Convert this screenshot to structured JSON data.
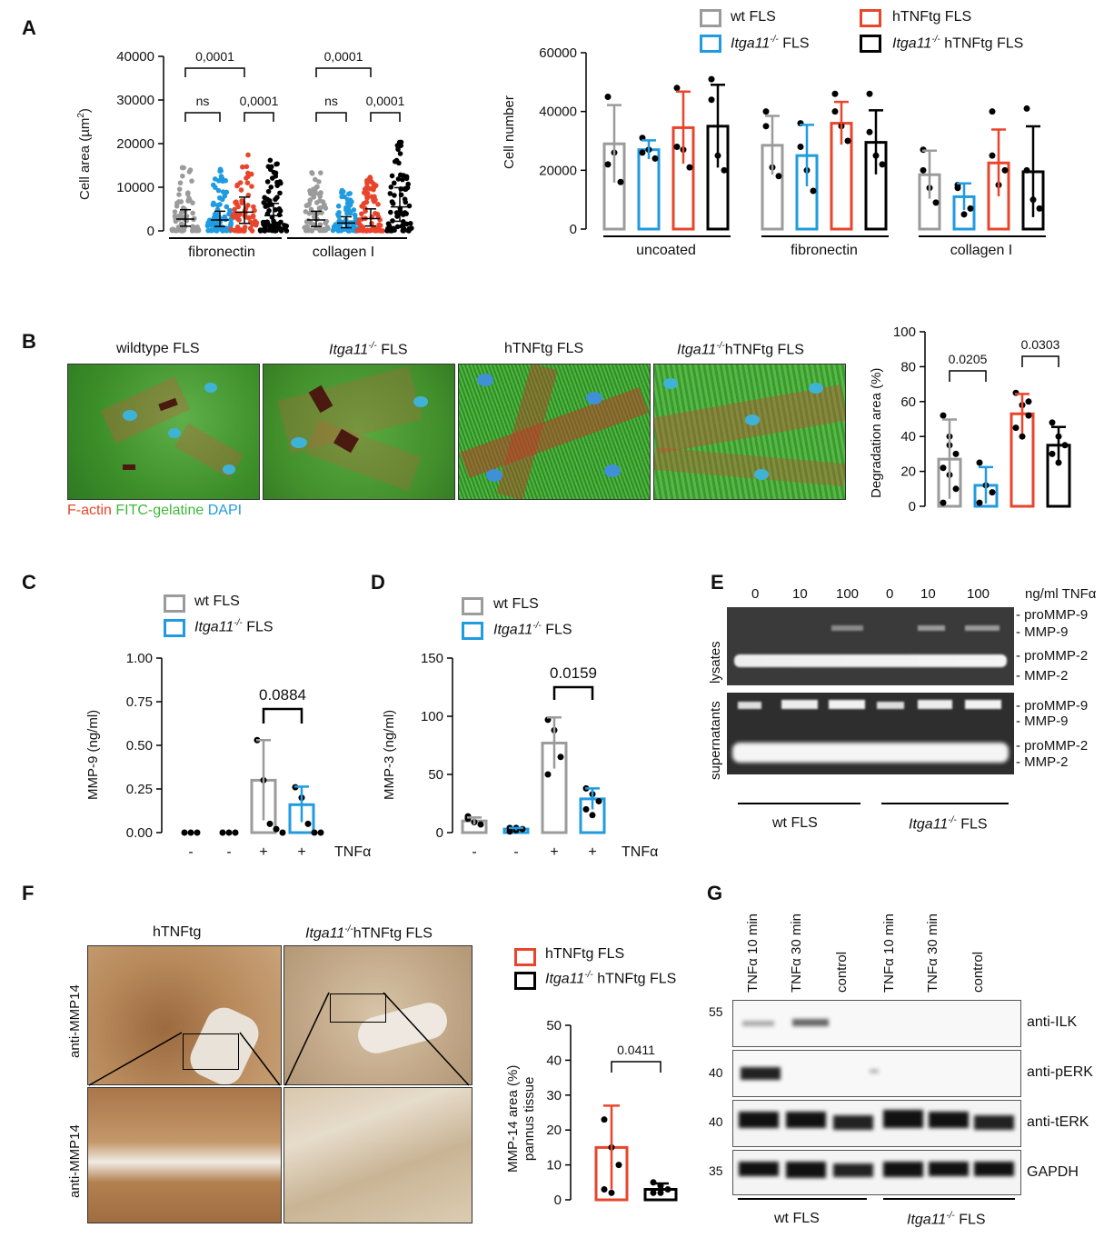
{
  "panels": {
    "A": {
      "letter": "A"
    },
    "B": {
      "letter": "B"
    },
    "C": {
      "letter": "C"
    },
    "D": {
      "letter": "D"
    },
    "E": {
      "letter": "E"
    },
    "F": {
      "letter": "F"
    },
    "G": {
      "letter": "G"
    }
  },
  "legend_main": {
    "wt": "wt FLS",
    "ko": "Itga11",
    "ko_sup": "-/-",
    "ko_suffix": " FLS",
    "tg": "hTNFtg FLS",
    "kotg": "Itga11",
    "kotg_sup": "-/-",
    "kotg_suffix": " hTNFtg FLS"
  },
  "colors": {
    "wt": "#9b9b9b",
    "ko": "#1f9be0",
    "tg": "#e8452c",
    "kotg": "#000000"
  },
  "chart_data": [
    {
      "id": "A-left",
      "type": "scatter",
      "ylabel": "Cell area (µm²)",
      "ylabel_main": "Cell area (µm",
      "ylabel_sup": "2",
      "ylabel_end": ")",
      "yticks": [
        "0",
        "10000",
        "20000",
        "30000",
        "40000"
      ],
      "ylim": [
        0,
        40000
      ],
      "groups": [
        "fibronectin",
        "collagen I"
      ],
      "annotations": [
        "0,0001",
        "ns",
        "0,0001",
        "0,0001",
        "ns",
        "0,0001"
      ],
      "series_medians": [
        2700,
        2500,
        4300,
        3500,
        2500,
        1800,
        2800,
        5500
      ]
    },
    {
      "id": "A-right",
      "type": "bar",
      "ylabel": "Cell number",
      "yticks": [
        "0",
        "20000",
        "40000",
        "60000"
      ],
      "ylim": [
        0,
        60000
      ],
      "categories": [
        "uncoated",
        "fibronectin",
        "collagen I"
      ],
      "series": [
        {
          "values": [
            29000,
            28500,
            18500
          ]
        },
        {
          "values": [
            27000,
            25000,
            11000
          ]
        },
        {
          "values": [
            34500,
            36000,
            22500
          ]
        },
        {
          "values": [
            35000,
            29500,
            19500
          ]
        }
      ]
    },
    {
      "id": "B-right",
      "type": "bar",
      "ylabel": "Degradation area (%)",
      "yticks": [
        "0",
        "20",
        "40",
        "60",
        "80",
        "100"
      ],
      "ylim": [
        0,
        100
      ],
      "values": [
        27,
        12,
        53,
        35
      ],
      "annotations": [
        "0.0205",
        "0.0303"
      ]
    },
    {
      "id": "C",
      "type": "bar",
      "ylabel": "MMP-9 (ng/ml)",
      "yticks": [
        "0.00",
        "0.25",
        "0.50",
        "0.75",
        "1.00"
      ],
      "ylim": [
        0,
        1
      ],
      "x_labels": [
        "-",
        "-",
        "+",
        "+"
      ],
      "x_factor": "TNFα",
      "values": [
        0,
        0,
        0.3,
        0.16
      ],
      "annotations": [
        "0.0884"
      ],
      "legend": [
        "wt FLS",
        "Itga11-/- FLS"
      ]
    },
    {
      "id": "D",
      "type": "bar",
      "ylabel": "MMP-3 (ng/ml)",
      "yticks": [
        "0",
        "50",
        "100",
        "150"
      ],
      "ylim": [
        0,
        150
      ],
      "x_labels": [
        "-",
        "-",
        "+",
        "+"
      ],
      "x_factor": "TNFα",
      "values": [
        10,
        3,
        77,
        29
      ],
      "annotations": [
        "0.0159"
      ],
      "legend": [
        "wt FLS",
        "Itga11-/- FLS"
      ]
    },
    {
      "id": "F-right",
      "type": "bar",
      "ylabel": "MMP-14 area (%) pannus tissue",
      "ylabel_line1": "MMP-14 area (%)",
      "ylabel_line2": "pannus tissue",
      "yticks": [
        "0",
        "10",
        "20",
        "30",
        "40",
        "50"
      ],
      "ylim": [
        0,
        50
      ],
      "values": [
        15,
        3
      ],
      "annotations": [
        "0.0411"
      ]
    }
  ],
  "panelB": {
    "titles": [
      "wildtype FLS",
      "Itga11",
      "hTNFtg FLS",
      "Itga11"
    ],
    "title_sup": "-/-",
    "title2_suffix": " FLS",
    "title4_suffix": "hTNFtg FLS",
    "stain_factin": "F-actin",
    "stain_fitc": "FITC-gelatine",
    "stain_dapi": "DAPI"
  },
  "panelE": {
    "conc": [
      "0",
      "10",
      "100",
      "0",
      "10",
      "100"
    ],
    "conc_unit": "ng/ml TNFα",
    "lysates": "lysates",
    "supernatants": "supernatants",
    "bands": [
      "proMMP-9",
      "MMP-9",
      "proMMP-2",
      "MMP-2"
    ],
    "groups": [
      "wt FLS",
      "Itga11",
      " FLS"
    ],
    "sup": "-/-"
  },
  "panelF": {
    "col1": "hTNFtg",
    "col2_pre": "Itga11",
    "col2_sup": "-/-",
    "col2_post": "hTNFtg FLS",
    "row_label": "anti-MMP14",
    "legend_tg": "hTNFtg FLS",
    "legend_kotg": "Itga11",
    "legend_kotg_suffix": " hTNFtg FLS"
  },
  "panelG": {
    "lanes": [
      "TNFα 10 min",
      "TNFα 30 min",
      "control",
      "TNFα 10 min",
      "TNFα 30 min",
      "control"
    ],
    "markers": [
      "55",
      "40",
      "40",
      "35"
    ],
    "blots": [
      "anti-ILK",
      "anti-pERK",
      "anti-tERK",
      "GAPDH"
    ],
    "groups": [
      "wt FLS",
      "Itga11",
      " FLS"
    ]
  }
}
